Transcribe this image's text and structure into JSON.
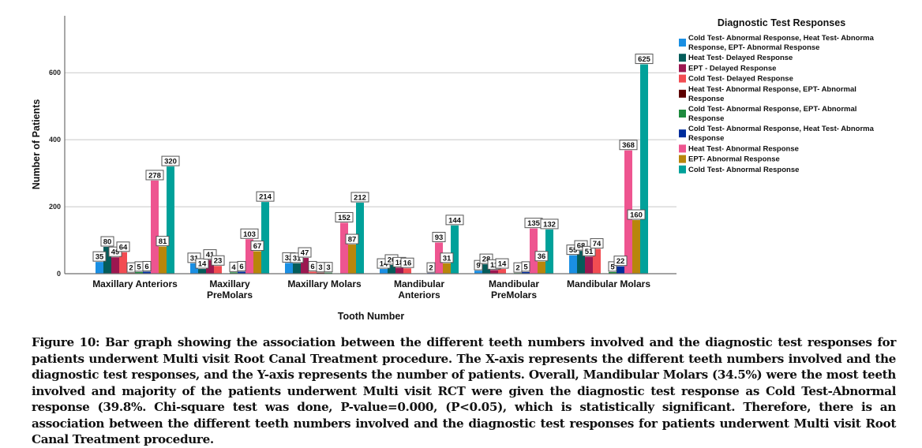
{
  "chart_data": {
    "type": "bar",
    "title": "",
    "xlabel": "Tooth Number",
    "ylabel": "Number of Patients",
    "ylim": [
      0,
      770
    ],
    "yticks": [
      0,
      200,
      400,
      600
    ],
    "grid": true,
    "legend_title": "Diagnostic Test Responses",
    "legend_position": "right",
    "categories": [
      [
        "Maxillary Anteriors"
      ],
      [
        "Maxillary",
        "PreMolars"
      ],
      [
        "Maxillary Molars"
      ],
      [
        "Mandibular",
        "Anteriors"
      ],
      [
        "Mandibular",
        "PreMolars"
      ],
      [
        "Mandibular Molars"
      ]
    ],
    "series": [
      {
        "name": "Cold Test- Abnormal Response, Heat Test- Abnormal Response, EPT- Abnormal Response",
        "legend_lines": [
          "Cold Test- Abnormal Response, Heat Test- Abnorma",
          "Response, EPT- Abnormal Response"
        ],
        "color": "#1a8fe3",
        "values": [
          35,
          31,
          32,
          14,
          9,
          55
        ]
      },
      {
        "name": "Heat Test- Delayed Response",
        "legend_lines": [
          "Heat Test- Delayed Response"
        ],
        "color": "#045c5a",
        "values": [
          80,
          14,
          31,
          26,
          28,
          68
        ]
      },
      {
        "name": "EPT - Delayed Response",
        "legend_lines": [
          "EPT - Delayed Response"
        ],
        "color": "#9c1750",
        "values": [
          49,
          41,
          47,
          18,
          11,
          51
        ]
      },
      {
        "name": "Cold Test- Delayed Response",
        "legend_lines": [
          "Cold Test- Delayed Response"
        ],
        "color": "#f24c52",
        "values": [
          64,
          23,
          6,
          16,
          14,
          74
        ]
      },
      {
        "name": "Heat Test- Abnormal Response, EPT- Abnormal Response",
        "legend_lines": [
          "Heat Test- Abnormal Response, EPT- Abnormal",
          "Response"
        ],
        "color": "#5c0000",
        "values": [
          2,
          null,
          3,
          null,
          null,
          null
        ]
      },
      {
        "name": "Cold Test- Abnormal Response, EPT- Abnormal Response",
        "legend_lines": [
          "Cold Test- Abnormal Response, EPT- Abnormal",
          "Response"
        ],
        "color": "#1e8a3e",
        "values": [
          5,
          4,
          3,
          null,
          2,
          5
        ]
      },
      {
        "name": "Cold Test- Abnormal Response, Heat Test- Abnormal Response",
        "legend_lines": [
          "Cold Test- Abnormal Response, Heat Test- Abnorma",
          "Response"
        ],
        "color": "#002d9c",
        "values": [
          6,
          6,
          null,
          2,
          5,
          22
        ]
      },
      {
        "name": "Heat Test- Abnormal Response",
        "legend_lines": [
          "Heat Test- Abnormal Response"
        ],
        "color": "#ee5590",
        "values": [
          278,
          103,
          152,
          93,
          135,
          368
        ]
      },
      {
        "name": "EPT- Abnormal Response",
        "legend_lines": [
          "EPT- Abnormal Response"
        ],
        "color": "#b8860b",
        "values": [
          81,
          67,
          87,
          31,
          36,
          160
        ]
      },
      {
        "name": "Cold Test- Abnormal Response",
        "legend_lines": [
          "Cold Test- Abnormal Response"
        ],
        "color": "#00a19a",
        "values": [
          320,
          214,
          212,
          144,
          132,
          625
        ]
      }
    ]
  },
  "caption": "Figure 10: Bar graph showing the association between the different teeth numbers involved and the diagnostic test responses for patients underwent Multi visit Root Canal Treatment procedure. The X-axis represents the different teeth numbers involved and the diagnostic test responses, and the Y-axis represents the number of patients. Overall, Mandibular Molars (34.5%) were the most teeth involved and majority of the patients underwent Multi visit RCT were given the diagnostic test response as Cold Test-Abnormal response (39.8%. Chi-square test was done, P-value=0.000, (P<0.05), which is statistically significant. Therefore, there is an association between the different teeth numbers involved and the diagnostic test responses for patients underwent Multi visit Root Canal Treatment procedure."
}
